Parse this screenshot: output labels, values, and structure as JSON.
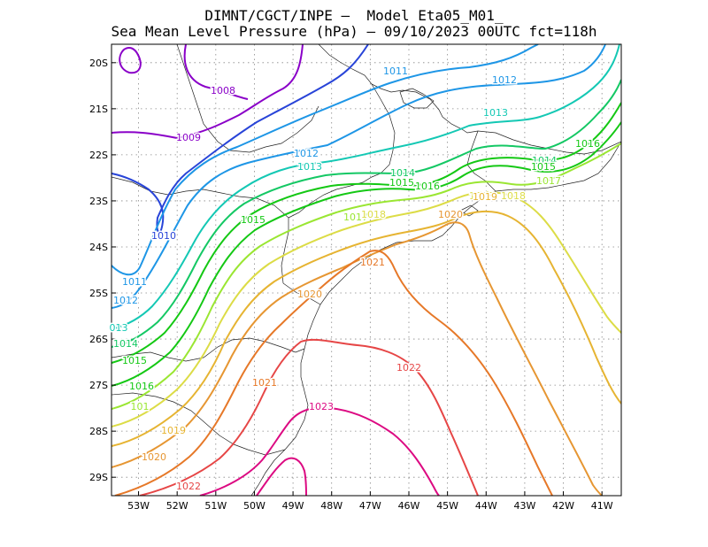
{
  "title": {
    "line1": "DIMNT/CGCT/INPE —  Model Eta05_M01_",
    "line2": "Sea Mean Level Pressure (hPa) — 09/10/2023 00UTC fct=118h"
  },
  "axes": {
    "x_ticks": [
      "53W",
      "52W",
      "51W",
      "50W",
      "49W",
      "48W",
      "47W",
      "46W",
      "45W",
      "44W",
      "43W",
      "42W",
      "41W"
    ],
    "y_ticks": [
      "20S",
      "21S",
      "22S",
      "23S",
      "24S",
      "25S",
      "26S",
      "27S",
      "28S",
      "29S"
    ],
    "lon_range": [
      -53.7,
      -40.5
    ],
    "lat_range": [
      -29.4,
      -19.6
    ],
    "grid": "dotted"
  },
  "contours": [
    {
      "value": "1008",
      "color": "#8a00c8"
    },
    {
      "value": "1009",
      "color": "#8a00c8"
    },
    {
      "value": "1010",
      "color": "#2844d8"
    },
    {
      "value": "1011",
      "color": "#1e96e6"
    },
    {
      "value": "1012",
      "color": "#1e96e6"
    },
    {
      "value": "1013",
      "color": "#14c8b4"
    },
    {
      "value": "1014",
      "color": "#14c864"
    },
    {
      "value": "1015",
      "color": "#14c814"
    },
    {
      "value": "1016",
      "color": "#14c814"
    },
    {
      "value": "1017",
      "color": "#9ae632"
    },
    {
      "value": "1018",
      "color": "#dcdc46"
    },
    {
      "value": "1019",
      "color": "#e6b432"
    },
    {
      "value": "1020",
      "color": "#e69632"
    },
    {
      "value": "1021",
      "color": "#e67828"
    },
    {
      "value": "1022",
      "color": "#e64646"
    },
    {
      "value": "1023",
      "color": "#dc0a82"
    }
  ],
  "labels": [
    {
      "text": "1008",
      "c": 0
    },
    {
      "text": "1009",
      "c": 1
    },
    {
      "text": "1010",
      "c": 2
    },
    {
      "text": "1011",
      "c": 3
    },
    {
      "text": "1011",
      "c": 3
    },
    {
      "text": "1012",
      "c": 4
    },
    {
      "text": "1012",
      "c": 4
    },
    {
      "text": "1012",
      "c": 4
    },
    {
      "text": "1013",
      "c": 5
    },
    {
      "text": "1013",
      "c": 5
    },
    {
      "text": "013",
      "c": 5
    },
    {
      "text": "1014",
      "c": 6
    },
    {
      "text": "1014",
      "c": 6
    },
    {
      "text": "1014",
      "c": 6
    },
    {
      "text": "1015",
      "c": 7
    },
    {
      "text": "1015",
      "c": 7
    },
    {
      "text": "1015",
      "c": 7
    },
    {
      "text": "1015",
      "c": 7
    },
    {
      "text": "1016",
      "c": 8
    },
    {
      "text": "1016",
      "c": 8
    },
    {
      "text": "1016",
      "c": 8
    },
    {
      "text": "1017",
      "c": 9
    },
    {
      "text": "1017",
      "c": 9
    },
    {
      "text": "101",
      "c": 9
    },
    {
      "text": "1018",
      "c": 10
    },
    {
      "text": "1018",
      "c": 10
    },
    {
      "text": "1018",
      "c": 10
    },
    {
      "text": "1019",
      "c": 11
    },
    {
      "text": "1019",
      "c": 11
    },
    {
      "text": "1020",
      "c": 12
    },
    {
      "text": "1020",
      "c": 12
    },
    {
      "text": "1020",
      "c": 12
    },
    {
      "text": "1021",
      "c": 13
    },
    {
      "text": "1021",
      "c": 13
    },
    {
      "text": "1022",
      "c": 14
    },
    {
      "text": "1022",
      "c": 14
    },
    {
      "text": "1023",
      "c": 15
    }
  ]
}
